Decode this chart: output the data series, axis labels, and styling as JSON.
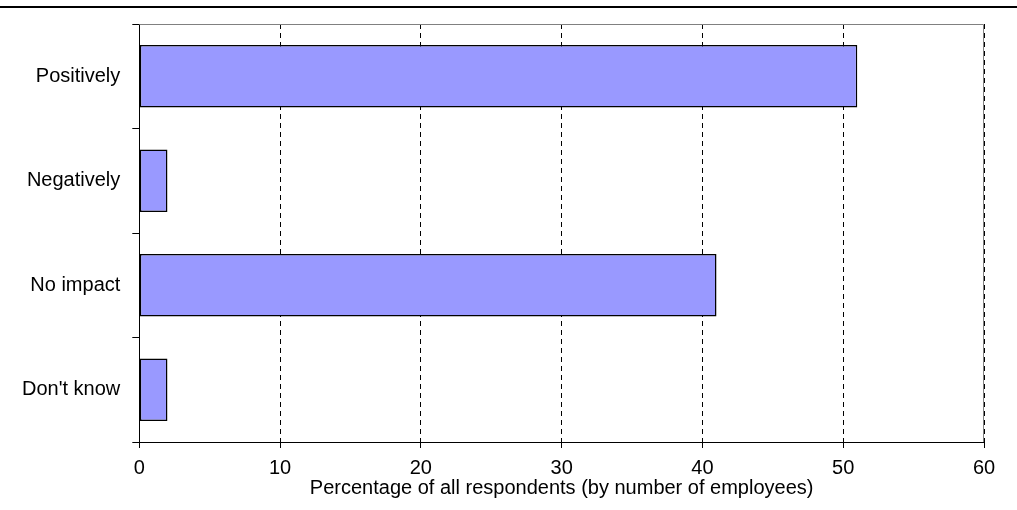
{
  "chart_data": {
    "type": "bar",
    "orientation": "horizontal",
    "xlabel": "Percentage of all respondents (by number of employees)",
    "categories": [
      "Positively",
      "Negatively",
      "No impact",
      "Don't know"
    ],
    "values": [
      51,
      2,
      41,
      2
    ],
    "color": "#9999ff",
    "xlim": [
      0,
      60
    ],
    "xticks": [
      0,
      10,
      20,
      30,
      40,
      50,
      60
    ],
    "grid": "x"
  }
}
